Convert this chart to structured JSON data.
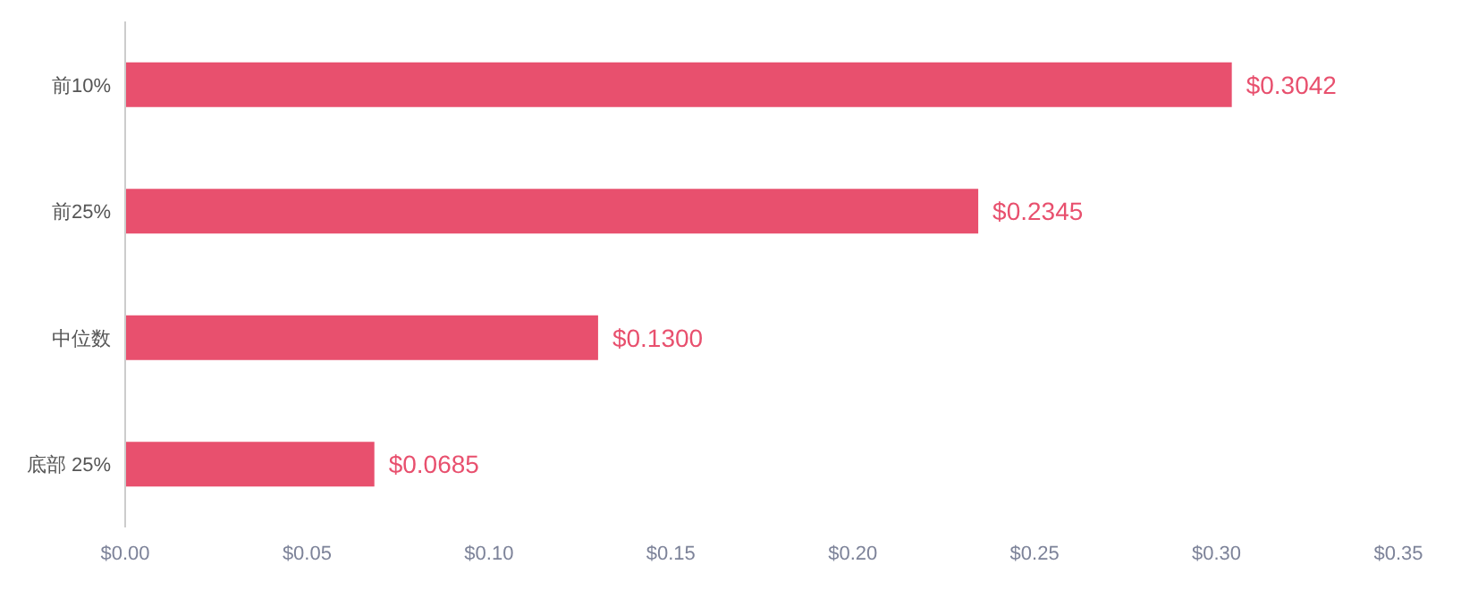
{
  "chart_data": {
    "type": "bar",
    "orientation": "horizontal",
    "categories": [
      "前10%",
      "前25%",
      "中位数",
      "底部 25%"
    ],
    "values": [
      0.3042,
      0.2345,
      0.13,
      0.0685
    ],
    "value_labels": [
      "$0.3042",
      "$0.2345",
      "$0.1300",
      "$0.0685"
    ],
    "color": "#e8506e",
    "xlim": [
      0,
      0.35
    ],
    "xticks": [
      {
        "value": 0,
        "label": "$0.00"
      },
      {
        "value": 0.05,
        "label": "$0.05"
      },
      {
        "value": 0.1,
        "label": "$0.10"
      },
      {
        "value": 0.15,
        "label": "$0.15"
      },
      {
        "value": 0.2,
        "label": "$0.20"
      },
      {
        "value": 0.25,
        "label": "$0.25"
      },
      {
        "value": 0.3,
        "label": "$0.30"
      },
      {
        "value": 0.35,
        "label": "$0.35"
      }
    ]
  }
}
